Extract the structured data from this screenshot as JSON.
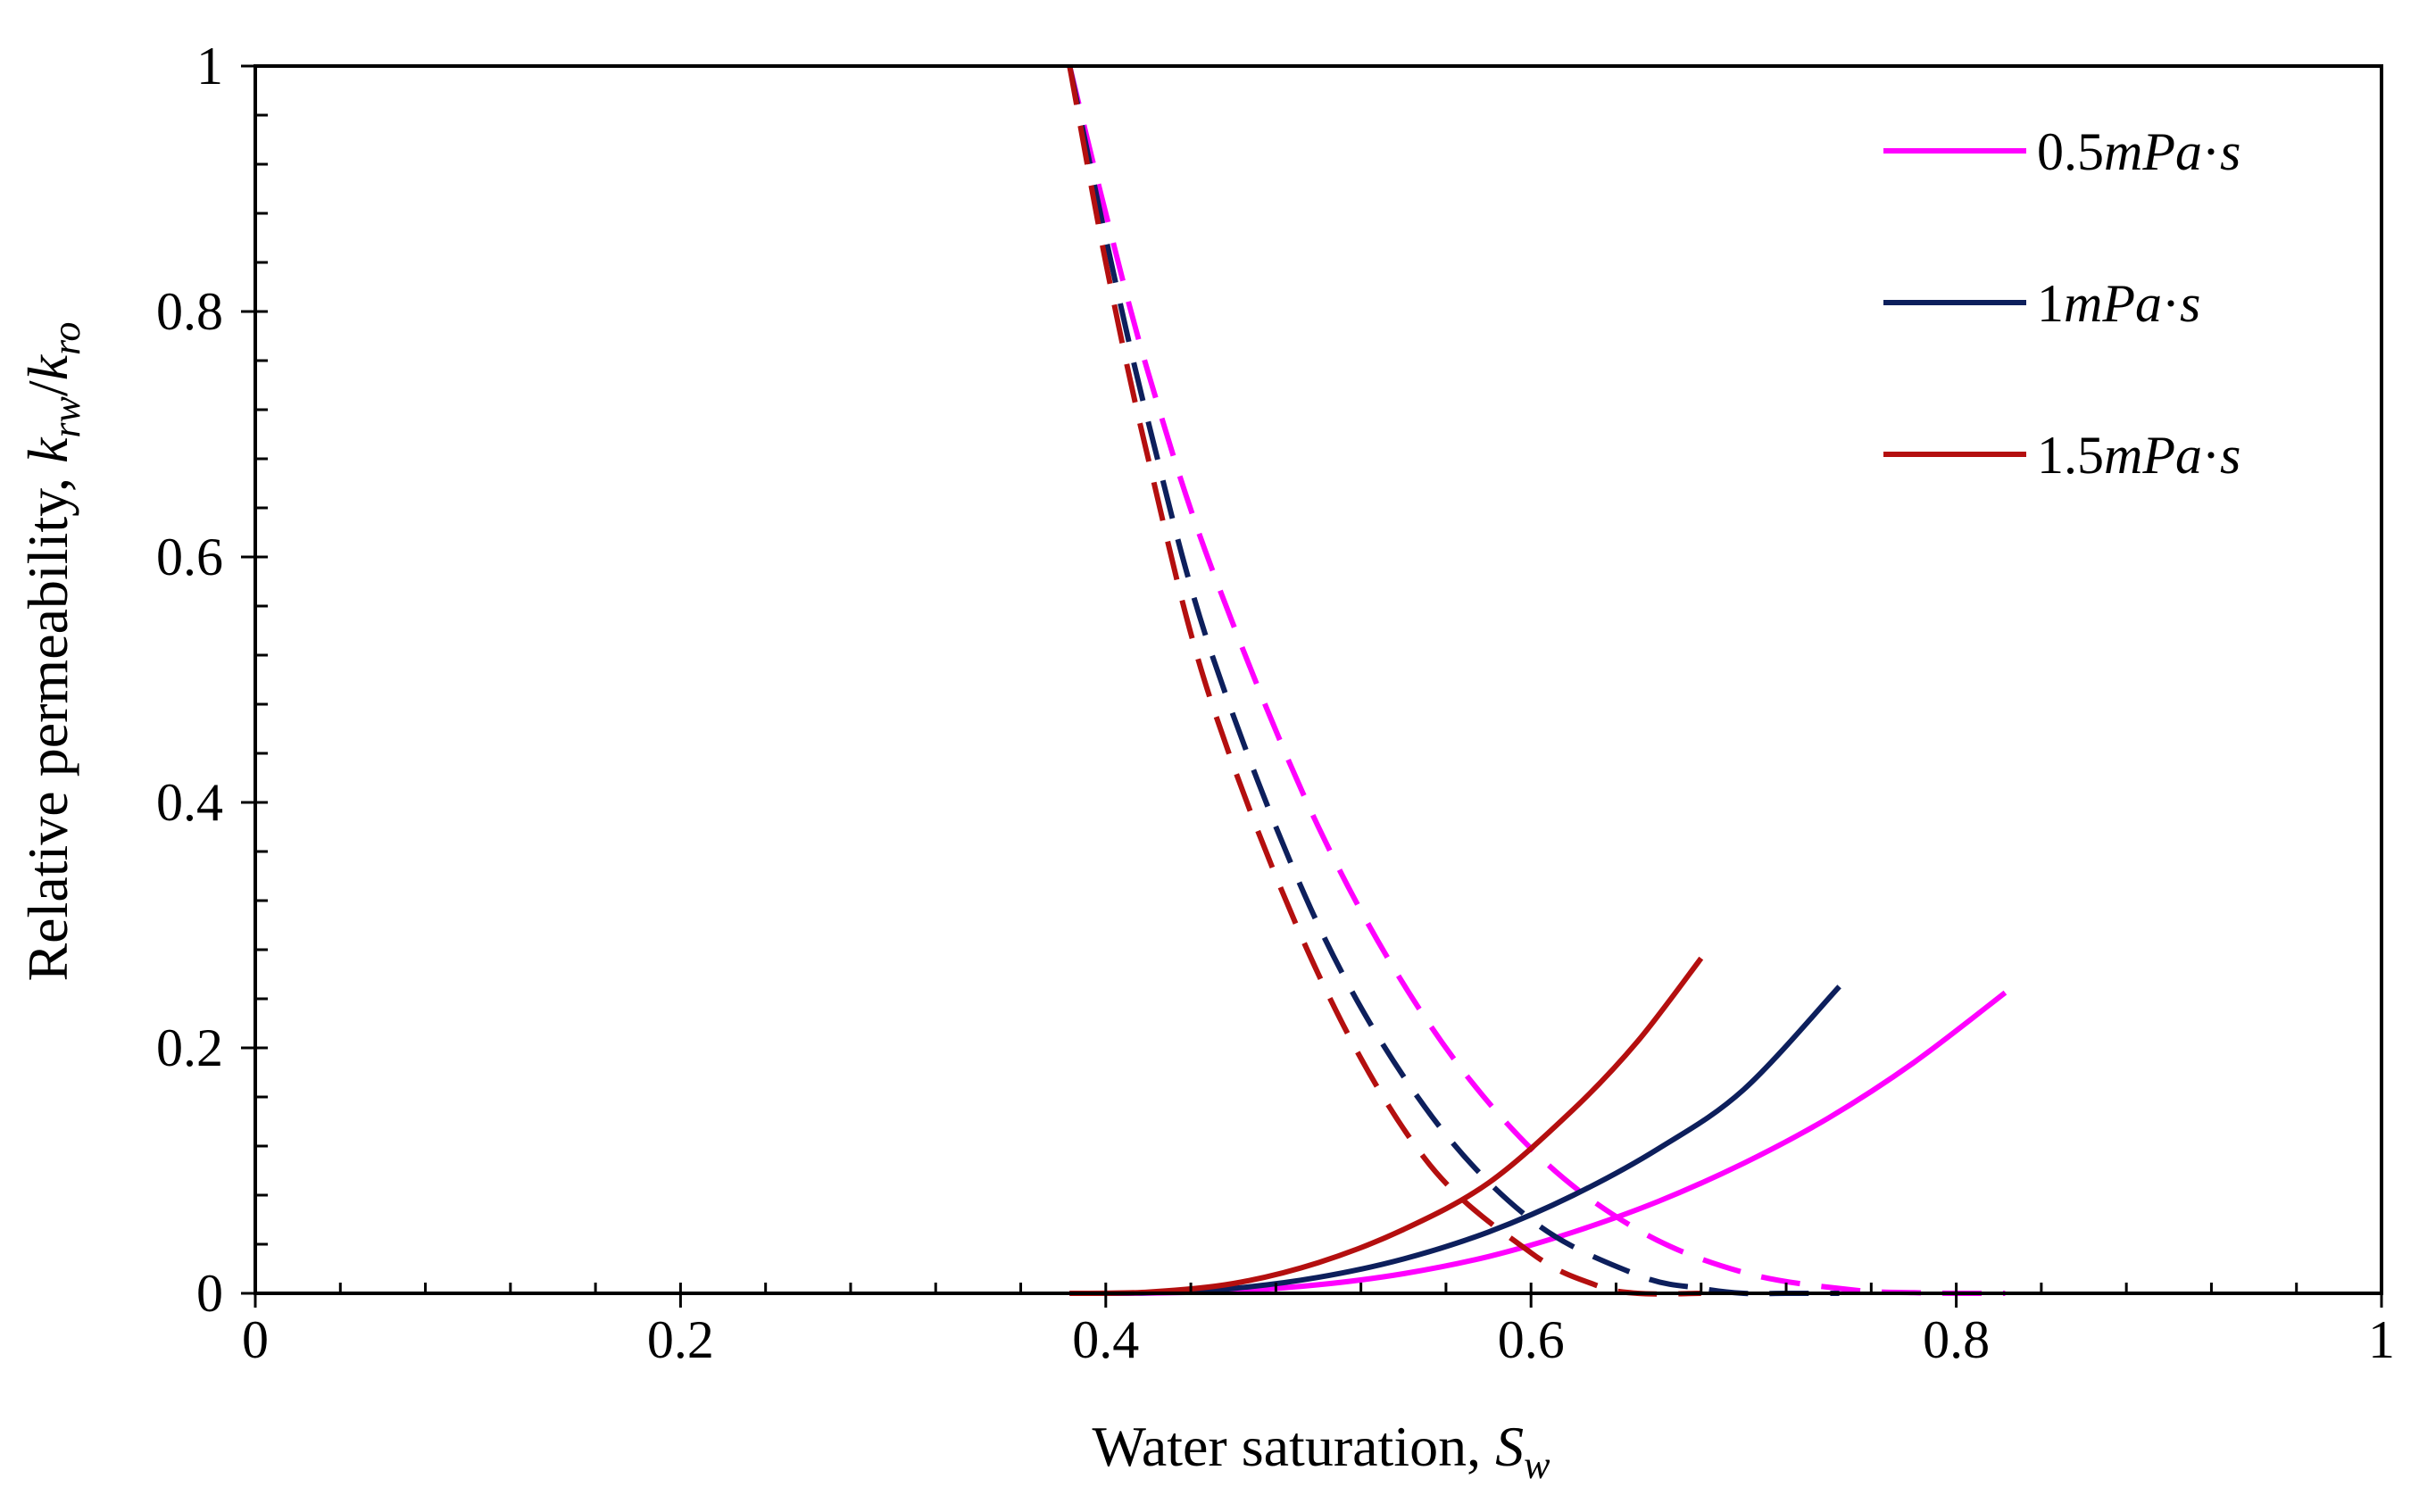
{
  "chart_data": {
    "type": "line",
    "title": "",
    "xlabel": {
      "main": "Water saturation, ",
      "symbol": "S",
      "subscript": "w"
    },
    "ylabel": {
      "main": "Relative permeability, ",
      "sym1": "k",
      "sub1": "rw",
      "sep": "/",
      "sym2": "k",
      "sub2": "ro"
    },
    "xlim": [
      0,
      1
    ],
    "ylim": [
      0,
      1
    ],
    "xticks": [
      0,
      0.2,
      0.4,
      0.6,
      0.8,
      1
    ],
    "yticks": [
      0,
      0.2,
      0.4,
      0.6,
      0.8,
      1
    ],
    "xtick_labels": [
      "0",
      "0.2",
      "0.4",
      "0.6",
      "0.8",
      "1"
    ],
    "ytick_labels": [
      "0",
      "0.2",
      "0.4",
      "0.6",
      "0.8",
      "1"
    ],
    "minor_tick_step": 0.04,
    "grid": false,
    "legend_position": "top-right",
    "note": "solid lines = krw, dashed lines = kro",
    "series": [
      {
        "name": "0.5mPa·s",
        "legend": {
          "num": "0.5",
          "unit": "mPa",
          "dot": "·",
          "s": "s"
        },
        "color": "#ff00ff",
        "krw": {
          "x": [
            0.383,
            0.42,
            0.46,
            0.5,
            0.54,
            0.58,
            0.62,
            0.66,
            0.7,
            0.74,
            0.78,
            0.823
          ],
          "y": [
            0,
            0.0002,
            0.002,
            0.007,
            0.016,
            0.03,
            0.05,
            0.075,
            0.106,
            0.143,
            0.188,
            0.245
          ]
        },
        "kro": {
          "x": [
            0.383,
            0.4,
            0.42,
            0.45,
            0.5,
            0.55,
            0.6,
            0.65,
            0.7,
            0.75,
            0.78,
            0.8,
            0.823
          ],
          "y": [
            1,
            0.88,
            0.75,
            0.59,
            0.38,
            0.225,
            0.118,
            0.052,
            0.017,
            0.003,
            0.0005,
            0.0,
            0.0
          ]
        }
      },
      {
        "name": "1mPa·s",
        "legend": {
          "num": "1",
          "unit": "mPa",
          "dot": "·",
          "s": "s"
        },
        "color": "#0d1f5c",
        "krw": {
          "x": [
            0.383,
            0.42,
            0.46,
            0.5,
            0.54,
            0.58,
            0.62,
            0.66,
            0.7,
            0.745
          ],
          "y": [
            0,
            0.0005,
            0.004,
            0.013,
            0.028,
            0.05,
            0.08,
            0.118,
            0.166,
            0.25
          ]
        },
        "kro": {
          "x": [
            0.383,
            0.4,
            0.42,
            0.45,
            0.5,
            0.55,
            0.6,
            0.65,
            0.68,
            0.7,
            0.72,
            0.745
          ],
          "y": [
            1,
            0.86,
            0.71,
            0.52,
            0.3,
            0.152,
            0.06,
            0.015,
            0.004,
            0.0,
            0.0,
            0.0
          ]
        }
      },
      {
        "name": "1.5mPa·s",
        "legend": {
          "num": "1.5",
          "unit": "mPa",
          "dot": "·",
          "s": "s"
        },
        "color": "#b40f0f",
        "krw": {
          "x": [
            0.383,
            0.42,
            0.46,
            0.5,
            0.54,
            0.58,
            0.62,
            0.65,
            0.68
          ],
          "y": [
            0,
            0.001,
            0.008,
            0.025,
            0.052,
            0.09,
            0.15,
            0.205,
            0.273
          ]
        },
        "kro": {
          "x": [
            0.383,
            0.4,
            0.42,
            0.45,
            0.5,
            0.55,
            0.6,
            0.63,
            0.65,
            0.68
          ],
          "y": [
            1,
            0.84,
            0.68,
            0.48,
            0.26,
            0.11,
            0.033,
            0.007,
            0.0,
            0.0
          ]
        }
      }
    ]
  }
}
